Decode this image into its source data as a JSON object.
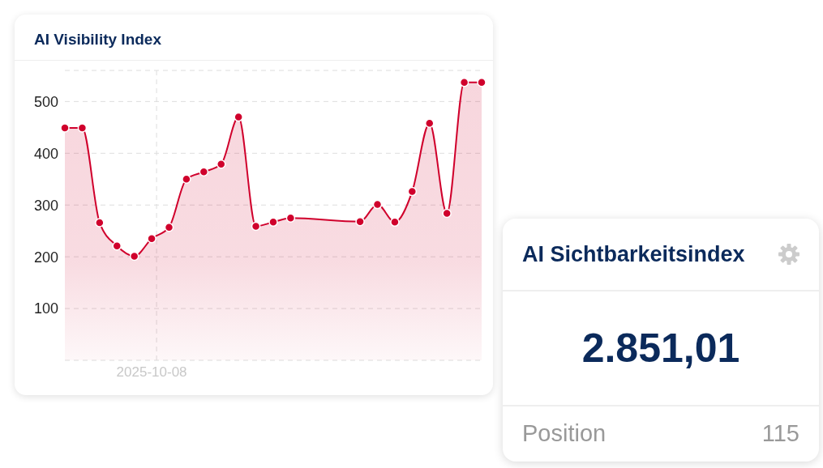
{
  "chart_data": [
    {
      "type": "area",
      "title": "AI Visibility Index",
      "categories": [
        null,
        null,
        null,
        null,
        null,
        "2025-10-08",
        null,
        null,
        null,
        null,
        null,
        null,
        null,
        null,
        null,
        null,
        null,
        null,
        null,
        null,
        null,
        null,
        null,
        null,
        null
      ],
      "series": [
        {
          "color": "#d0002c",
          "values": [
            449,
            449,
            266,
            221,
            201,
            235,
            257,
            350,
            364,
            379,
            470,
            259,
            267,
            275,
            null,
            null,
            null,
            268,
            301,
            267,
            326,
            458,
            284,
            537,
            537
          ]
        }
      ],
      "ylim": [
        0,
        560
      ],
      "yticks": [
        100,
        200,
        300,
        400,
        500
      ],
      "grid": true,
      "marker": "circle",
      "line_style": "solid"
    },
    {
      "type": "other",
      "title": "AI Sichtbarkeitsindex",
      "annotations": [
        "2.851,01",
        "Position",
        "115"
      ]
    }
  ]
}
